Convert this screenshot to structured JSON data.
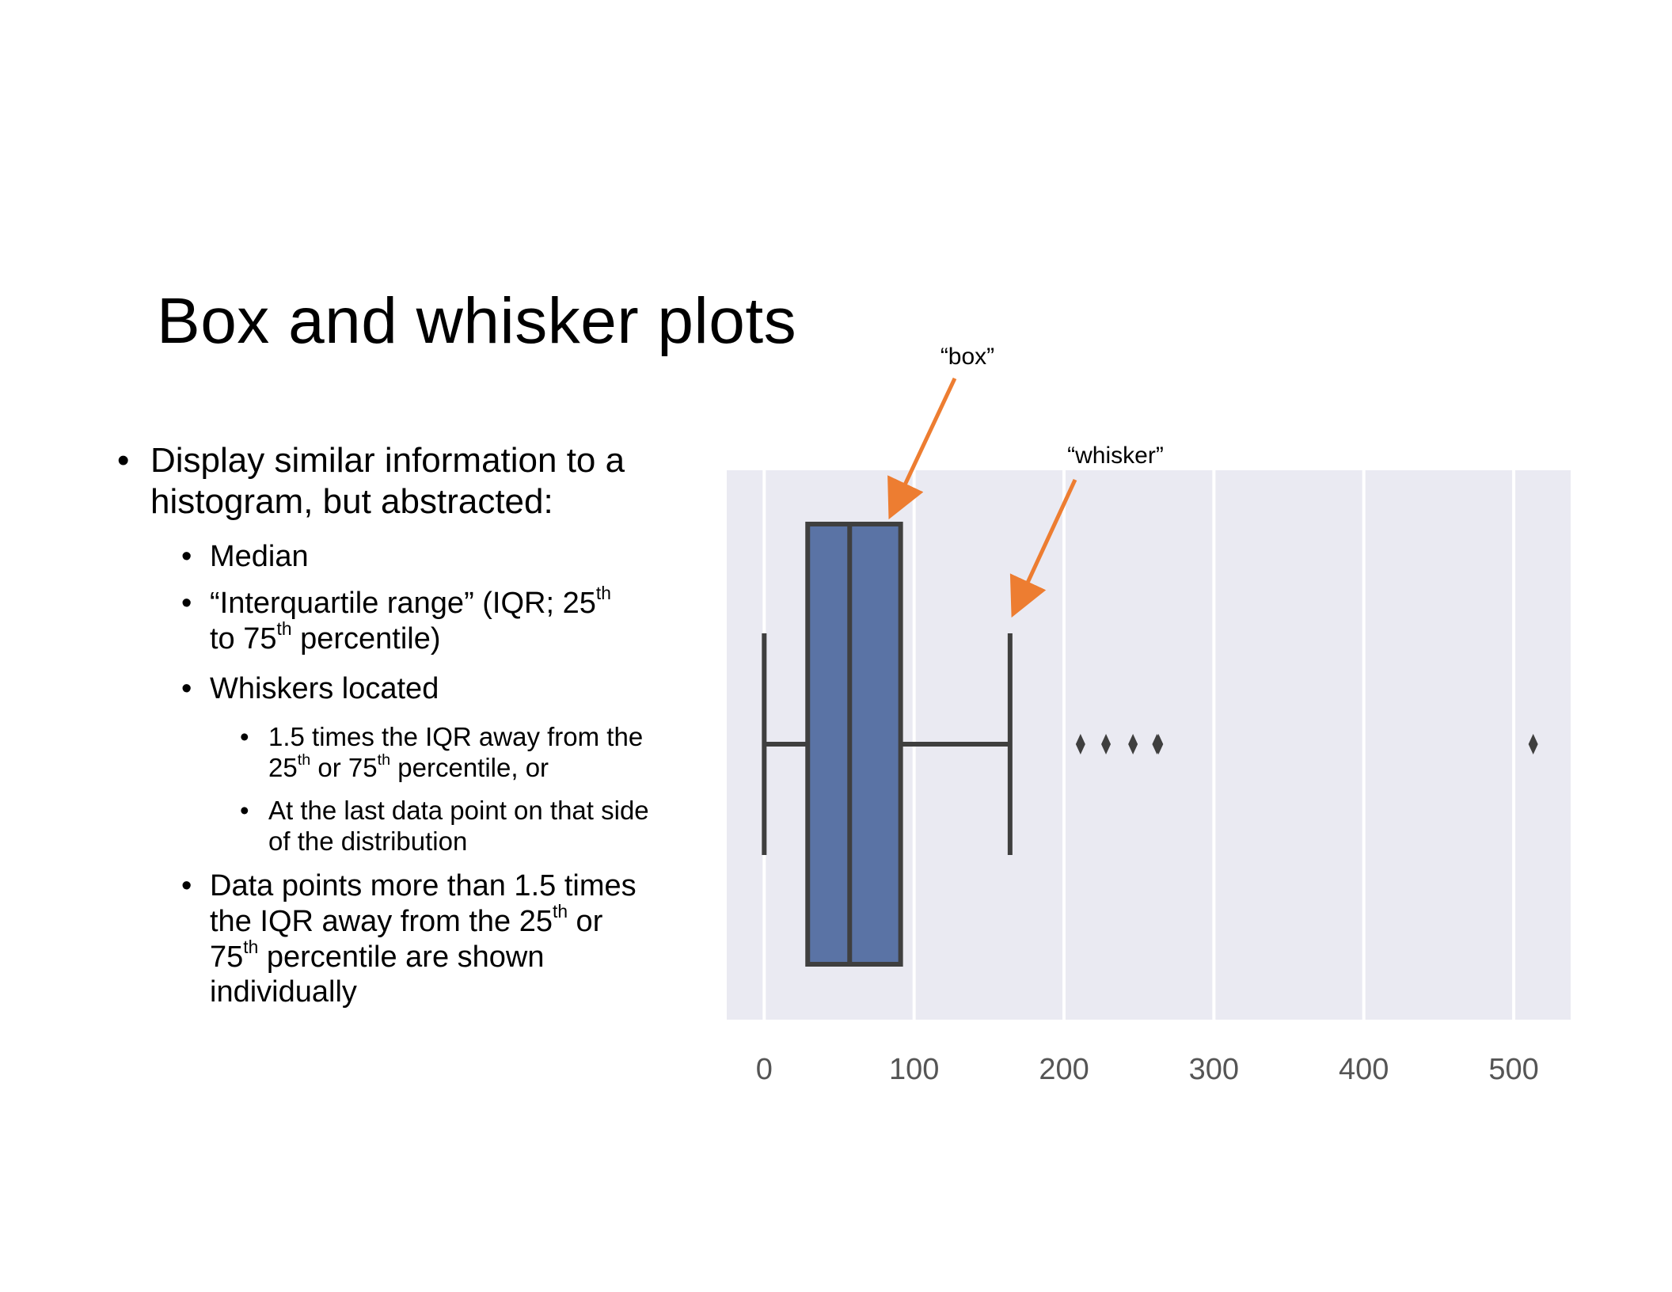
{
  "slide": {
    "title": "Box and whisker plots",
    "bullets": {
      "b1": {
        "text": "Display similar information to a histogram, but abstracted:"
      },
      "b2": {
        "text": "Median"
      },
      "b3": {
        "a": "“Interquartile range” (IQR; 25",
        "sup1": "th",
        "b": "to 75",
        "sup2": "th",
        "c": " percentile)"
      },
      "b4": {
        "text": "Whiskers located"
      },
      "b5": {
        "a": "1.5 times the IQR away from the",
        "b": "25",
        "sup1": "th",
        "c": " or 75",
        "sup2": "th",
        "d": " percentile, or"
      },
      "b6": {
        "a": "At the last data point on that side",
        "b": "of the distribution"
      },
      "b7": {
        "a": "Data points more than 1.5 times",
        "b": "the IQR away from the 25",
        "sup1": "th",
        "c": " or",
        "d": "75",
        "sup2": "th",
        "e": " percentile are shown",
        "f": "individually"
      }
    },
    "bullet_symbol": "•"
  },
  "annotations": {
    "box_label": "“box”",
    "whisker_label": "“whisker”",
    "arrow_color": "#ED7D31"
  },
  "chart_data": {
    "type": "box",
    "orientation": "horizontal",
    "x_ticks": [
      0,
      100,
      200,
      300,
      400,
      500
    ],
    "x_tick_labels": [
      "0",
      "100",
      "200",
      "300",
      "400",
      "500"
    ],
    "xlim": [
      -25,
      538
    ],
    "grid": true,
    "background_color": "#EAEAF2",
    "box_color": "#5A73A5",
    "line_color": "#3F3F3F",
    "whisker_low": 0,
    "q1": 29,
    "median": 57,
    "q3": 91,
    "whisker_high": 164,
    "outliers": [
      211,
      228,
      246,
      262,
      263,
      513
    ]
  }
}
